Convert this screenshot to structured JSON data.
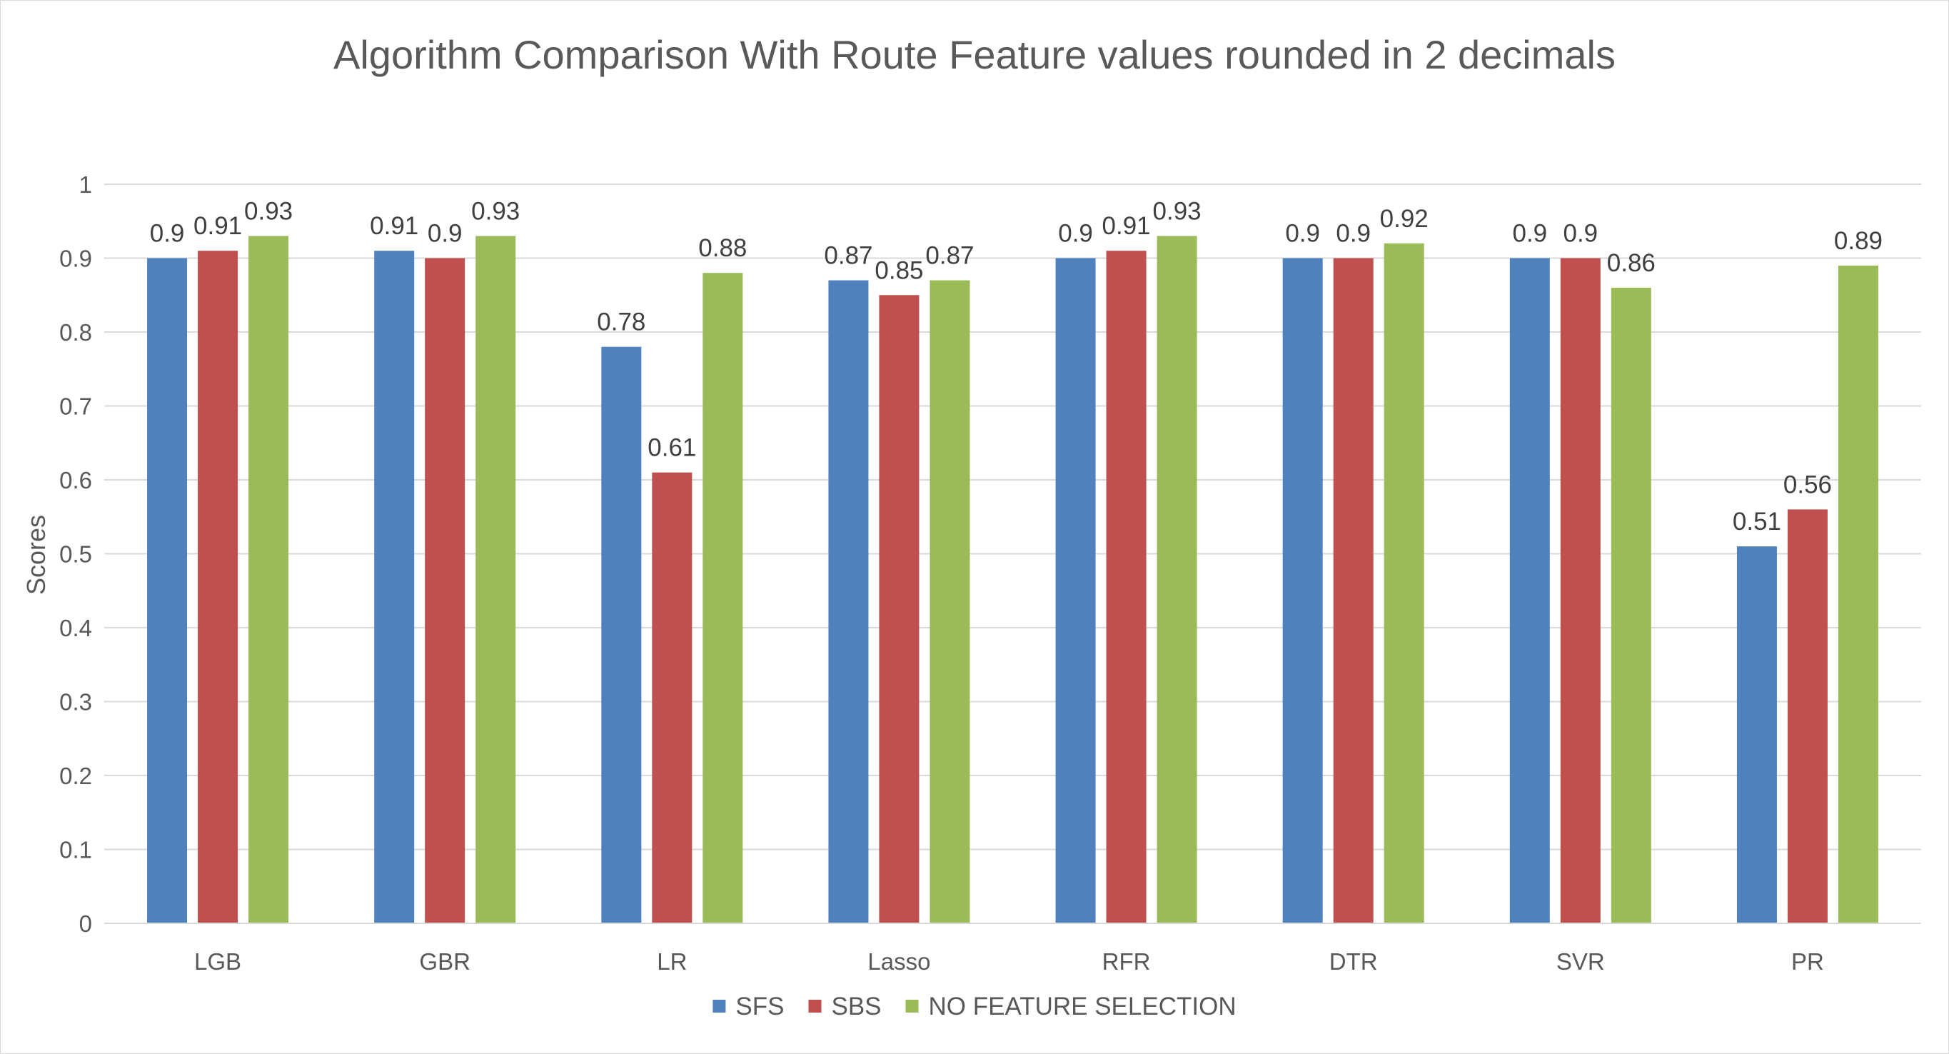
{
  "chart_data": {
    "type": "bar",
    "title": "Algorithm Comparison With Route Feature values rounded in 2 decimals",
    "xlabel": "",
    "ylabel": "Scores",
    "ylim": [
      0,
      1
    ],
    "yticks": [
      "0",
      "0.1",
      "0.2",
      "0.3",
      "0.4",
      "0.5",
      "0.6",
      "0.7",
      "0.8",
      "0.9",
      "1"
    ],
    "categories": [
      "LGB",
      "GBR",
      "LR",
      "Lasso",
      "RFR",
      "DTR",
      "SVR",
      "PR"
    ],
    "series": [
      {
        "name": "SFS",
        "color": "#4f81bd",
        "values": [
          0.9,
          0.91,
          0.78,
          0.87,
          0.9,
          0.9,
          0.9,
          0.51
        ]
      },
      {
        "name": "SBS",
        "color": "#c0504d",
        "values": [
          0.91,
          0.9,
          0.61,
          0.85,
          0.91,
          0.9,
          0.9,
          0.56
        ]
      },
      {
        "name": "NO FEATURE SELECTION",
        "color": "#9bbb59",
        "values": [
          0.93,
          0.93,
          0.88,
          0.87,
          0.93,
          0.92,
          0.86,
          0.89
        ]
      }
    ],
    "grid": true,
    "gridline_color": "#d9d9d9",
    "data_labels": true,
    "legend_position": "bottom"
  }
}
